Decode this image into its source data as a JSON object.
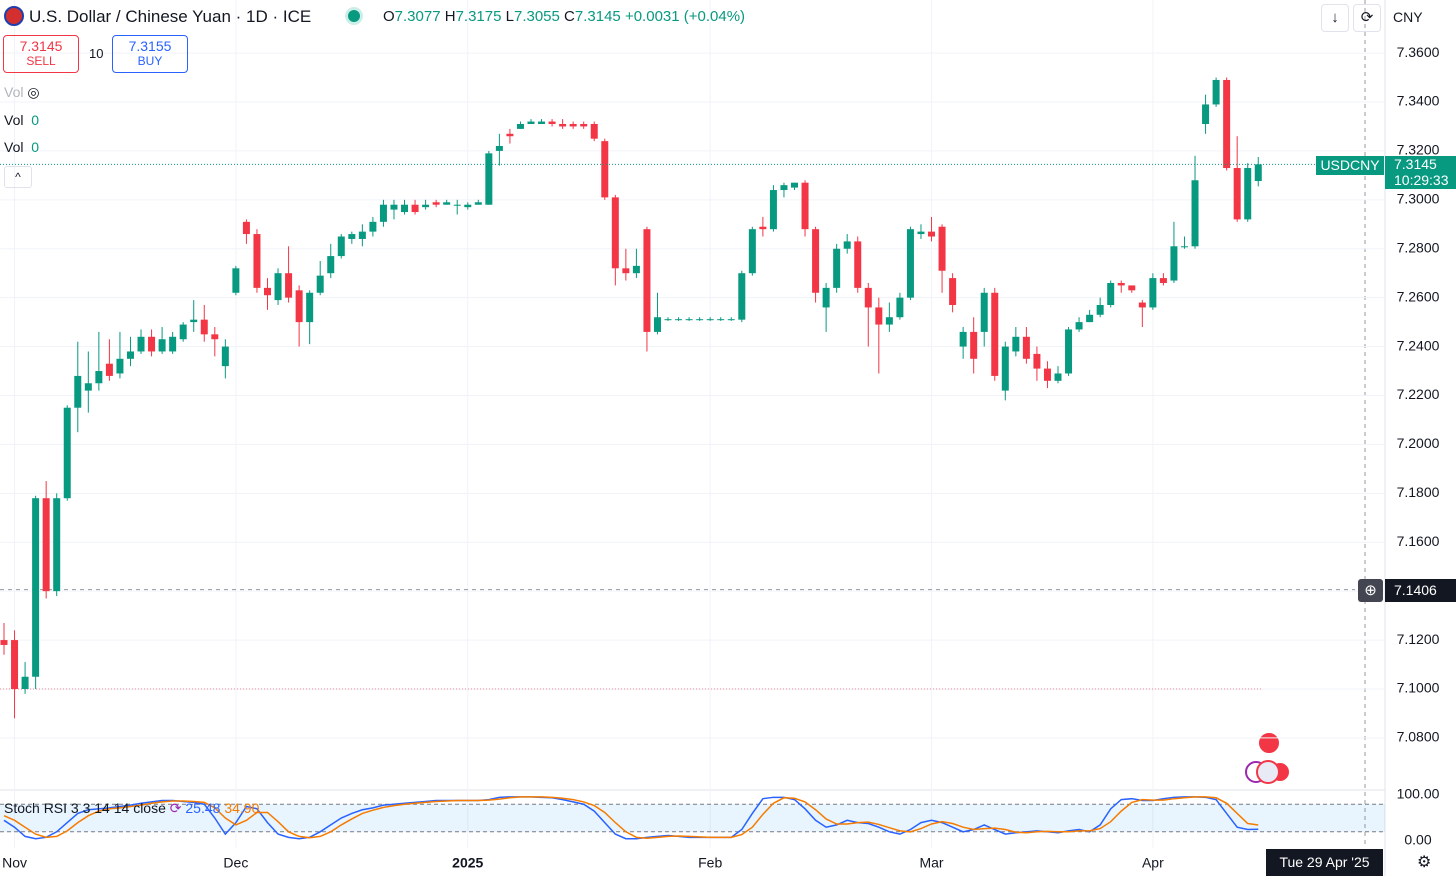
{
  "header": {
    "title": "U.S. Dollar / Chinese Yuan · 1D · ICE",
    "o": "O",
    "h": "H",
    "l": "L",
    "c": "C",
    "change": "+0.0031 (+0.04%)",
    "currency": "CNY",
    "sell": "SELL",
    "buy": "BUY",
    "buy_price": 7.3155,
    "quantity": "10",
    "vol": "Vol",
    "vol_value": "0",
    "symbol": "USDCNY",
    "countdown": "10:29:33",
    "date_label": "Tue 29 Apr '25",
    "crosshair_price": 7.1406
  },
  "chart_data": [
    {
      "type": "candlestick",
      "up_color": "#089981",
      "down_color": "#f23645",
      "ref_line": 7.1,
      "categories": [
        null,
        "Nov",
        null,
        null,
        null,
        null,
        null,
        null,
        null,
        null,
        null,
        null,
        null,
        null,
        null,
        null,
        null,
        null,
        null,
        null,
        null,
        null,
        "Dec",
        null,
        null,
        null,
        null,
        null,
        null,
        null,
        null,
        null,
        null,
        null,
        null,
        null,
        null,
        null,
        null,
        null,
        null,
        null,
        null,
        null,
        "2025",
        null,
        null,
        null,
        null,
        null,
        null,
        null,
        null,
        null,
        null,
        null,
        null,
        null,
        null,
        null,
        null,
        null,
        null,
        null,
        null,
        null,
        null,
        "Feb",
        null,
        null,
        null,
        null,
        null,
        null,
        null,
        null,
        null,
        null,
        null,
        null,
        null,
        null,
        null,
        null,
        null,
        null,
        null,
        null,
        "Mar",
        null,
        null,
        null,
        null,
        null,
        null,
        null,
        null,
        null,
        null,
        null,
        null,
        null,
        null,
        null,
        null,
        null,
        null,
        null,
        null,
        "Apr",
        null,
        null,
        null,
        null,
        null,
        null,
        null,
        null,
        null,
        null
      ],
      "open": [
        7.12,
        7.12,
        7.1,
        7.105,
        7.178,
        7.14,
        7.178,
        7.215,
        7.222,
        7.225,
        7.233,
        7.229,
        7.235,
        7.238,
        7.244,
        7.238,
        7.238,
        7.243,
        7.25,
        7.251,
        7.245,
        7.232,
        7.262,
        7.291,
        7.286,
        7.264,
        7.259,
        7.27,
        7.263,
        7.25,
        7.262,
        7.27,
        7.277,
        7.284,
        7.284,
        7.287,
        7.291,
        7.296,
        7.295,
        7.298,
        7.297,
        7.299,
        7.298,
        7.298,
        7.297,
        7.298,
        7.298,
        7.32,
        7.327,
        7.329,
        7.331,
        7.331,
        7.332,
        7.331,
        7.331,
        7.331,
        7.331,
        7.324,
        7.301,
        7.272,
        7.27,
        7.288,
        7.246,
        7.251,
        7.251,
        7.251,
        7.251,
        7.251,
        7.251,
        7.251,
        7.251,
        7.27,
        7.289,
        7.288,
        7.304,
        7.305,
        7.307,
        7.288,
        7.256,
        7.264,
        7.28,
        7.283,
        7.264,
        7.256,
        7.249,
        7.252,
        7.26,
        7.286,
        7.287,
        7.289,
        7.268,
        7.24,
        7.246,
        7.246,
        7.262,
        7.222,
        7.238,
        7.244,
        7.237,
        7.231,
        7.226,
        7.229,
        7.247,
        7.25,
        7.253,
        7.257,
        7.266,
        7.265,
        7.258,
        7.256,
        7.268,
        7.267,
        7.281,
        7.281,
        7.331,
        7.339,
        7.349,
        7.313,
        7.292,
        7.3077
      ],
      "high": [
        7.127,
        7.124,
        7.111,
        7.179,
        7.185,
        7.18,
        7.216,
        7.242,
        7.238,
        7.246,
        7.243,
        7.246,
        7.244,
        7.247,
        7.247,
        7.248,
        7.246,
        7.25,
        7.259,
        7.257,
        7.248,
        7.243,
        7.273,
        7.292,
        7.288,
        7.268,
        7.272,
        7.281,
        7.265,
        7.263,
        7.275,
        7.282,
        7.286,
        7.287,
        7.29,
        7.293,
        7.3,
        7.3,
        7.3,
        7.3,
        7.3,
        7.3,
        7.3,
        7.3,
        7.299,
        7.3,
        7.32,
        7.327,
        7.329,
        7.332,
        7.333,
        7.333,
        7.333,
        7.333,
        7.332,
        7.332,
        7.332,
        7.325,
        7.302,
        7.28,
        7.28,
        7.289,
        7.262,
        7.252,
        7.252,
        7.252,
        7.252,
        7.252,
        7.252,
        7.252,
        7.271,
        7.289,
        7.293,
        7.306,
        7.307,
        7.307,
        7.308,
        7.289,
        7.266,
        7.282,
        7.286,
        7.285,
        7.266,
        7.26,
        7.258,
        7.262,
        7.289,
        7.29,
        7.293,
        7.29,
        7.27,
        7.248,
        7.252,
        7.264,
        7.264,
        7.242,
        7.248,
        7.248,
        7.24,
        7.234,
        7.232,
        7.248,
        7.252,
        7.255,
        7.26,
        7.267,
        7.267,
        7.265,
        7.259,
        7.27,
        7.27,
        7.291,
        7.285,
        7.318,
        7.343,
        7.35,
        7.35,
        7.326,
        7.315,
        7.3175
      ],
      "low": [
        7.114,
        7.088,
        7.098,
        7.1,
        7.137,
        7.138,
        7.177,
        7.205,
        7.213,
        7.222,
        7.226,
        7.227,
        7.232,
        7.237,
        7.236,
        7.237,
        7.237,
        7.242,
        7.246,
        7.242,
        7.236,
        7.227,
        7.261,
        7.282,
        7.262,
        7.255,
        7.257,
        7.258,
        7.24,
        7.241,
        7.261,
        7.268,
        7.276,
        7.282,
        7.281,
        7.285,
        7.289,
        7.292,
        7.294,
        7.294,
        7.296,
        7.297,
        7.298,
        7.294,
        7.296,
        7.298,
        7.298,
        7.314,
        7.323,
        7.329,
        7.331,
        7.331,
        7.33,
        7.329,
        7.329,
        7.329,
        7.324,
        7.3,
        7.265,
        7.267,
        7.268,
        7.238,
        7.245,
        7.2505,
        7.2505,
        7.2505,
        7.2505,
        7.2505,
        7.2505,
        7.2505,
        7.25,
        7.269,
        7.285,
        7.287,
        7.301,
        7.304,
        7.285,
        7.258,
        7.246,
        7.262,
        7.278,
        7.262,
        7.24,
        7.229,
        7.246,
        7.251,
        7.259,
        7.284,
        7.283,
        7.262,
        7.254,
        7.235,
        7.229,
        7.24,
        7.226,
        7.218,
        7.236,
        7.233,
        7.226,
        7.223,
        7.225,
        7.228,
        7.246,
        7.25,
        7.252,
        7.256,
        7.262,
        7.262,
        7.248,
        7.255,
        7.265,
        7.266,
        7.28,
        7.28,
        7.327,
        7.338,
        7.312,
        7.291,
        7.291,
        7.3055
      ],
      "close": [
        7.118,
        7.1,
        7.105,
        7.178,
        7.14,
        7.178,
        7.215,
        7.228,
        7.225,
        7.23,
        7.228,
        7.235,
        7.238,
        7.244,
        7.238,
        7.243,
        7.244,
        7.249,
        7.251,
        7.245,
        7.243,
        7.24,
        7.272,
        7.286,
        7.264,
        7.261,
        7.27,
        7.26,
        7.25,
        7.262,
        7.269,
        7.277,
        7.285,
        7.286,
        7.287,
        7.291,
        7.298,
        7.298,
        7.298,
        7.295,
        7.298,
        7.298,
        7.299,
        7.298,
        7.298,
        7.299,
        7.319,
        7.322,
        7.326,
        7.331,
        7.332,
        7.332,
        7.331,
        7.33,
        7.33,
        7.33,
        7.325,
        7.301,
        7.272,
        7.27,
        7.273,
        7.246,
        7.252,
        7.2512,
        7.2512,
        7.2512,
        7.2512,
        7.2512,
        7.2512,
        7.2512,
        7.27,
        7.288,
        7.288,
        7.304,
        7.306,
        7.307,
        7.288,
        7.262,
        7.264,
        7.28,
        7.283,
        7.264,
        7.256,
        7.249,
        7.252,
        7.26,
        7.288,
        7.287,
        7.285,
        7.271,
        7.257,
        7.246,
        7.235,
        7.262,
        7.228,
        7.24,
        7.244,
        7.235,
        7.231,
        7.226,
        7.229,
        7.247,
        7.25,
        7.253,
        7.257,
        7.266,
        7.265,
        7.263,
        7.256,
        7.268,
        7.266,
        7.281,
        7.281,
        7.308,
        7.339,
        7.349,
        7.313,
        7.292,
        7.313,
        7.3145
      ],
      "ylim": [
        7.0587,
        7.3817
      ],
      "yticks": [
        {
          "value": 7.08,
          "label": "7.0800"
        },
        {
          "value": 7.1,
          "label": "7.1000"
        },
        {
          "value": 7.12,
          "label": "7.1200"
        },
        {
          "value": 7.14,
          "label": "7.1400"
        },
        {
          "value": 7.16,
          "label": "7.1600"
        },
        {
          "value": 7.18,
          "label": "7.1800"
        },
        {
          "value": 7.2,
          "label": "7.2000"
        },
        {
          "value": 7.22,
          "label": "7.2200"
        },
        {
          "value": 7.24,
          "label": "7.2400"
        },
        {
          "value": 7.26,
          "label": "7.2600"
        },
        {
          "value": 7.28,
          "label": "7.2800"
        },
        {
          "value": 7.3,
          "label": "7.3000"
        },
        {
          "value": 7.32,
          "label": "7.3200"
        },
        {
          "value": 7.34,
          "label": "7.3400"
        },
        {
          "value": 7.36,
          "label": "7.3600"
        }
      ],
      "grid": true
    },
    {
      "type": "line",
      "title": "Stoch RSI 3 3 14 14 close",
      "ylim": [
        -15.2,
        110.9
      ],
      "yticks": [
        {
          "value": 100,
          "label": "100.00"
        },
        {
          "value": 0,
          "label": "0.00"
        }
      ],
      "bands": [
        80,
        20
      ],
      "series": [
        {
          "color": "#2962ff",
          "values": [
            45,
            30,
            10,
            5,
            8,
            20,
            40,
            60,
            68,
            70,
            72,
            75,
            78,
            82,
            85,
            88,
            88,
            86,
            84,
            80,
            50,
            15,
            40,
            75,
            70,
            40,
            15,
            8,
            5,
            8,
            20,
            35,
            50,
            60,
            68,
            72,
            78,
            80,
            82,
            84,
            86,
            88,
            88,
            88,
            88,
            88,
            90,
            95,
            96,
            96,
            96,
            95,
            94,
            90,
            85,
            80,
            65,
            40,
            15,
            5,
            5,
            8,
            10,
            12,
            10,
            8,
            8,
            8,
            8,
            8,
            25,
            60,
            92,
            95,
            95,
            90,
            70,
            45,
            30,
            35,
            45,
            40,
            38,
            30,
            20,
            15,
            25,
            40,
            45,
            40,
            30,
            20,
            25,
            35,
            25,
            15,
            18,
            20,
            22,
            20,
            18,
            22,
            25,
            20,
            35,
            70,
            90,
            92,
            88,
            88,
            92,
            95,
            96,
            96,
            95,
            90,
            60,
            30,
            25,
            25.48
          ]
        },
        {
          "color": "#f57c00",
          "last_label": "34.90",
          "values": [
            55,
            45,
            30,
            15,
            8,
            10,
            22,
            40,
            55,
            65,
            70,
            72,
            75,
            78,
            82,
            85,
            87,
            87,
            86,
            84,
            72,
            50,
            35,
            45,
            62,
            62,
            42,
            20,
            10,
            7,
            10,
            20,
            35,
            48,
            60,
            67,
            73,
            77,
            80,
            82,
            84,
            86,
            87,
            88,
            88,
            88,
            89,
            91,
            94,
            96,
            96,
            96,
            95,
            93,
            90,
            85,
            77,
            62,
            40,
            20,
            8,
            6,
            8,
            10,
            11,
            10,
            9,
            8,
            8,
            8,
            14,
            30,
            58,
            82,
            94,
            93,
            85,
            68,
            48,
            37,
            37,
            40,
            41,
            36,
            29,
            22,
            20,
            27,
            37,
            42,
            38,
            30,
            25,
            27,
            28,
            25,
            19,
            18,
            20,
            21,
            20,
            20,
            22,
            22,
            27,
            42,
            65,
            84,
            90,
            89,
            89,
            92,
            94,
            96,
            96,
            94,
            82,
            60,
            38,
            34.9
          ]
        }
      ]
    }
  ]
}
